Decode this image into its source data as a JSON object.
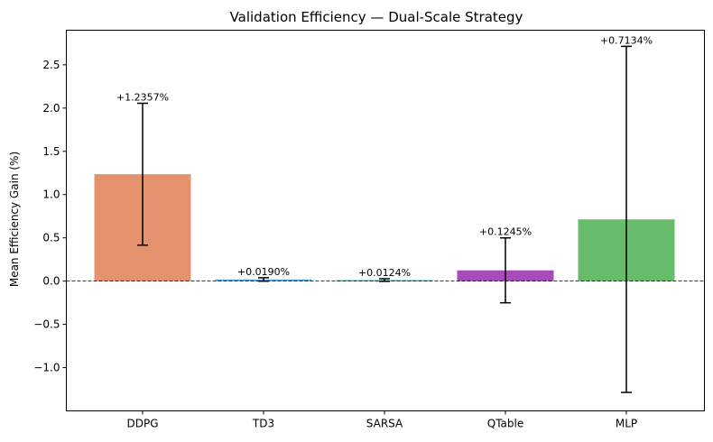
{
  "chart_data": {
    "type": "bar",
    "title": "Validation Efficiency — Dual-Scale Strategy",
    "xlabel": "",
    "ylabel": "Mean Efficiency Gain (%)",
    "categories": [
      "DDPG",
      "TD3",
      "SARSA",
      "QTable",
      "MLP"
    ],
    "values": [
      1.2357,
      0.019,
      0.0124,
      0.1245,
      0.7134
    ],
    "errors": [
      0.82,
      0.02,
      0.015,
      0.375,
      2.0
    ],
    "data_labels": [
      "+1.2357%",
      "+0.0190%",
      "+0.0124%",
      "+0.1245%",
      "+0.7134%"
    ],
    "colors": [
      "#e4916e",
      "#4aa3df",
      "#53bcb0",
      "#a64bb8",
      "#67bc6b"
    ],
    "ylim": [
      -1.5,
      2.9
    ],
    "yticks": [
      -1.0,
      -0.5,
      0.0,
      0.5,
      1.0,
      1.5,
      2.0,
      2.5
    ],
    "ytick_labels": [
      "−1.0",
      "−0.5",
      "0.0",
      "0.5",
      "1.0",
      "1.5",
      "2.0",
      "2.5"
    ],
    "zero_line": "dashed",
    "grid": false,
    "legend": "none"
  }
}
